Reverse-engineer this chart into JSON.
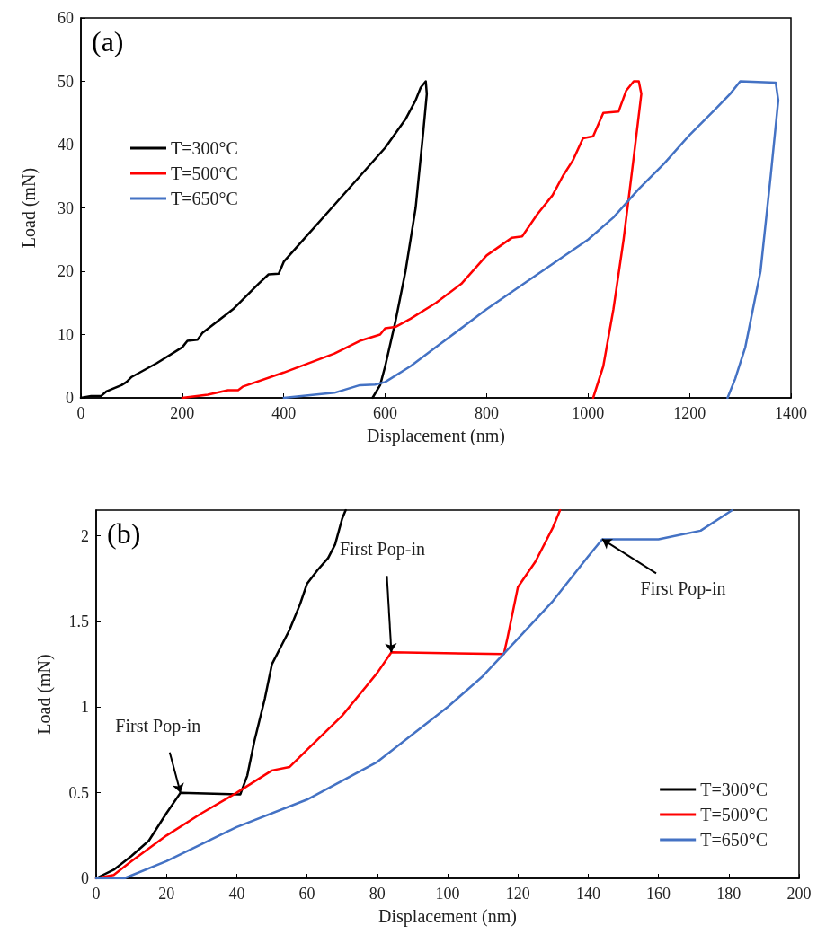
{
  "chart_data": [
    {
      "type": "line",
      "xlabel": "Displacement (nm)",
      "ylabel": "Load (mN)",
      "xlim": [
        0,
        1400
      ],
      "xticks": [
        0,
        200,
        400,
        600,
        800,
        1000,
        1200,
        1400
      ],
      "ylim": [
        0,
        60
      ],
      "yticks": [
        0,
        10,
        20,
        30,
        40,
        50,
        60
      ],
      "grid": false,
      "legend": "left",
      "marker": "none",
      "line_style": "solid",
      "annotations": [
        "(a)"
      ],
      "series": [
        {
          "name": "T=300°C",
          "color": "#000000",
          "x": [
            0,
            20,
            40,
            50,
            80,
            90,
            100,
            150,
            200,
            210,
            230,
            240,
            300,
            350,
            370,
            390,
            400,
            450,
            500,
            550,
            600,
            640,
            660,
            670,
            680,
            682,
            675,
            660,
            640,
            620,
            600,
            590,
            575
          ],
          "values": [
            0,
            0.3,
            0.3,
            1,
            2,
            2.5,
            3.3,
            5.5,
            8,
            9,
            9.2,
            10.3,
            14,
            18,
            19.5,
            19.6,
            21.5,
            26,
            30.5,
            35,
            39.5,
            44,
            47,
            49,
            50,
            48,
            42,
            30,
            20,
            12,
            5,
            2,
            0
          ]
        },
        {
          "name": "T=500°C",
          "color": "#ff0000",
          "x": [
            200,
            250,
            290,
            310,
            320,
            400,
            500,
            550,
            570,
            590,
            600,
            620,
            650,
            700,
            750,
            800,
            850,
            870,
            900,
            930,
            950,
            970,
            990,
            1010,
            1030,
            1060,
            1075,
            1090,
            1100,
            1105,
            1090,
            1070,
            1050,
            1030,
            1010
          ],
          "values": [
            0,
            0.5,
            1.2,
            1.2,
            1.8,
            4,
            7,
            9,
            9.5,
            10,
            11,
            11.2,
            12.5,
            15,
            18,
            22.5,
            25.3,
            25.5,
            29,
            32,
            35,
            37.5,
            41,
            41.3,
            45,
            45.2,
            48.5,
            50,
            50,
            48,
            38,
            25,
            14,
            5,
            0
          ]
        },
        {
          "name": "T=650°C",
          "color": "#4472c4",
          "x": [
            400,
            500,
            550,
            580,
            600,
            650,
            700,
            800,
            900,
            1000,
            1050,
            1100,
            1150,
            1200,
            1250,
            1280,
            1300,
            1370,
            1375,
            1360,
            1340,
            1310,
            1290,
            1275
          ],
          "values": [
            0,
            0.8,
            2,
            2.1,
            2.5,
            5,
            8,
            14,
            19.5,
            25,
            28.5,
            33,
            37,
            41.5,
            45.5,
            48,
            50,
            49.8,
            47,
            35,
            20,
            8,
            3,
            0
          ]
        }
      ]
    },
    {
      "type": "line",
      "xlabel": "Displacement (nm)",
      "ylabel": "Load (mN)",
      "xlim": [
        0,
        200
      ],
      "xticks": [
        0,
        20,
        40,
        60,
        80,
        100,
        120,
        140,
        160,
        180,
        200
      ],
      "ylim": [
        0,
        2.15
      ],
      "yticks": [
        0,
        0.5,
        1,
        1.5,
        2
      ],
      "grid": false,
      "legend": "bottom right",
      "marker": "none",
      "line_style": "solid",
      "annotations": [
        "(b)",
        {
          "text": "First Pop-in",
          "x": 24,
          "y": 0.5
        },
        {
          "text": "First Pop-in",
          "x": 84,
          "y": 1.32
        },
        {
          "text": "First Pop-in",
          "x": 144,
          "y": 1.98
        }
      ],
      "series": [
        {
          "name": "T=300°C",
          "color": "#000000",
          "x": [
            0,
            5,
            10,
            15,
            20,
            24,
            41,
            43,
            45,
            48,
            50,
            53,
            55,
            58,
            60,
            63,
            66,
            68,
            70,
            71
          ],
          "values": [
            0,
            0.05,
            0.13,
            0.22,
            0.38,
            0.5,
            0.49,
            0.6,
            0.8,
            1.05,
            1.25,
            1.37,
            1.45,
            1.6,
            1.72,
            1.8,
            1.87,
            1.95,
            2.1,
            2.15
          ]
        },
        {
          "name": "T=500°C",
          "color": "#ff0000",
          "x": [
            0,
            5,
            10,
            20,
            30,
            40,
            50,
            55,
            60,
            70,
            80,
            84,
            116,
            117,
            118,
            120,
            125,
            130,
            132
          ],
          "values": [
            0,
            0.02,
            0.1,
            0.25,
            0.38,
            0.5,
            0.63,
            0.65,
            0.75,
            0.95,
            1.2,
            1.32,
            1.31,
            1.4,
            1.5,
            1.7,
            1.85,
            2.05,
            2.15
          ]
        },
        {
          "name": "T=650°C",
          "color": "#4472c4",
          "x": [
            0,
            8,
            20,
            30,
            40,
            60,
            80,
            100,
            110,
            120,
            130,
            140,
            144,
            160,
            172,
            181
          ],
          "values": [
            0,
            0,
            0.1,
            0.2,
            0.3,
            0.46,
            0.68,
            1.0,
            1.18,
            1.4,
            1.62,
            1.88,
            1.98,
            1.98,
            2.03,
            2.15
          ]
        }
      ]
    }
  ]
}
